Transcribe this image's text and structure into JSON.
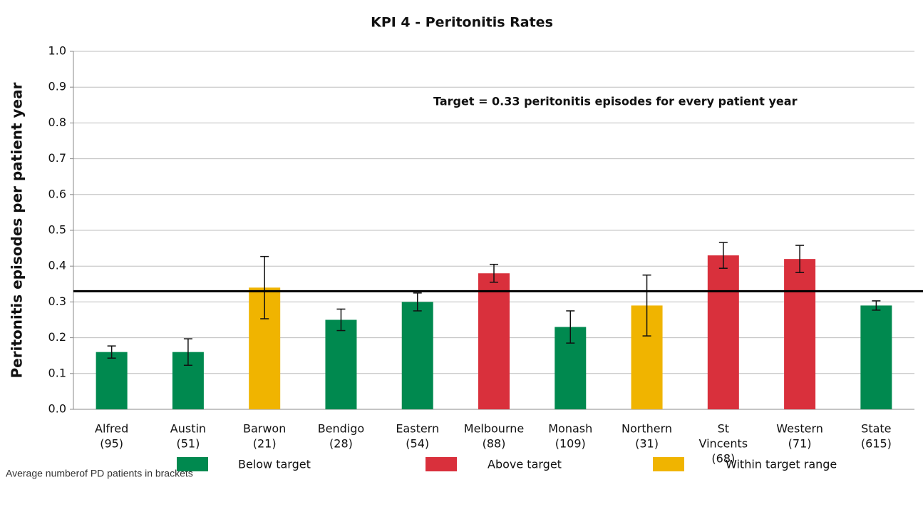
{
  "chart_data": {
    "type": "bar",
    "title": "KPI 4 - Peritonitis Rates",
    "y_label": "Peritonitis episodes per patient year",
    "categories": [
      [
        "Alfred",
        "(95)"
      ],
      [
        "Austin",
        "(51)"
      ],
      [
        "Barwon",
        "(21)"
      ],
      [
        "Bendigo",
        "(28)"
      ],
      [
        "Eastern",
        "(54)"
      ],
      [
        "Melbourne",
        "(88)"
      ],
      [
        "Monash",
        "(109)"
      ],
      [
        "Northern",
        "(31)"
      ],
      [
        "St",
        "Vincents",
        "(68)"
      ],
      [
        "Western",
        "(71)"
      ],
      [
        "State",
        "(615)"
      ]
    ],
    "values": [
      0.16,
      0.16,
      0.34,
      0.25,
      0.3,
      0.38,
      0.23,
      0.29,
      0.43,
      0.42,
      0.29
    ],
    "errors": [
      0.017,
      0.037,
      0.087,
      0.03,
      0.025,
      0.025,
      0.045,
      0.085,
      0.036,
      0.038,
      0.013
    ],
    "colors": [
      "#00894f",
      "#00894f",
      "#f0b400",
      "#00894f",
      "#00894f",
      "#d9303c",
      "#00894f",
      "#f0b400",
      "#d9303c",
      "#d9303c",
      "#00894f"
    ],
    "target": 0.33,
    "target_label": "Target  = 0.33 peritonitis episodes for every patient year",
    "note": "Average numberof PD patients in brackets",
    "legend": [
      {
        "name": "Below target",
        "color": "#00894f"
      },
      {
        "name": "Above target",
        "color": "#d9303c"
      },
      {
        "name": "Within target  range",
        "color": "#f0b400"
      }
    ],
    "ylim": [
      0,
      1
    ],
    "yticks": [
      {
        "value": 0,
        "label": "0.0"
      },
      0.1,
      0.2,
      0.3,
      0.4,
      0.5,
      0.6,
      0.7,
      0.8,
      0.9,
      {
        "value": 1,
        "label": "1.0"
      }
    ],
    "grid": true
  }
}
